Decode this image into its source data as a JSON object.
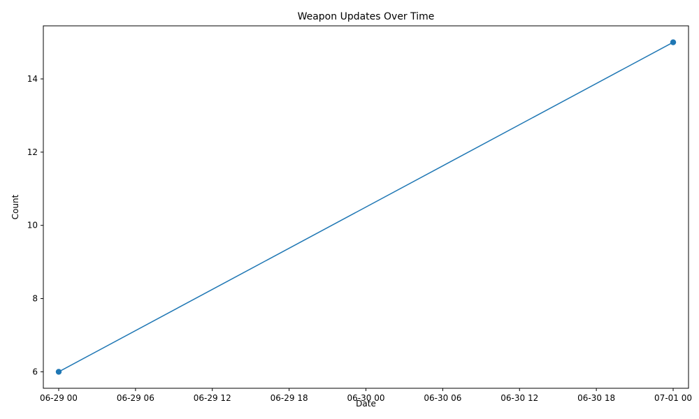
{
  "chart_data": {
    "type": "line",
    "title": "Weapon Updates Over Time",
    "xlabel": "Date",
    "ylabel": "Count",
    "x_tick_labels": [
      "06-29 00",
      "06-29 06",
      "06-29 12",
      "06-29 18",
      "06-30 00",
      "06-30 06",
      "06-30 12",
      "06-30 18",
      "07-01 00"
    ],
    "y_tick_labels": [
      "6",
      "8",
      "10",
      "12",
      "14"
    ],
    "y_ticks": [
      6,
      8,
      10,
      12,
      14
    ],
    "ylim": [
      5.55,
      15.45
    ],
    "xlim": [
      "06-28 22:48",
      "07-01 01:12"
    ],
    "grid": false,
    "legend": "none",
    "series": [
      {
        "color": "#1f77b4",
        "marker": "circle",
        "points": [
          {
            "x": "06-29 00",
            "y": 6
          },
          {
            "x": "07-01 00",
            "y": 15
          }
        ]
      }
    ]
  }
}
